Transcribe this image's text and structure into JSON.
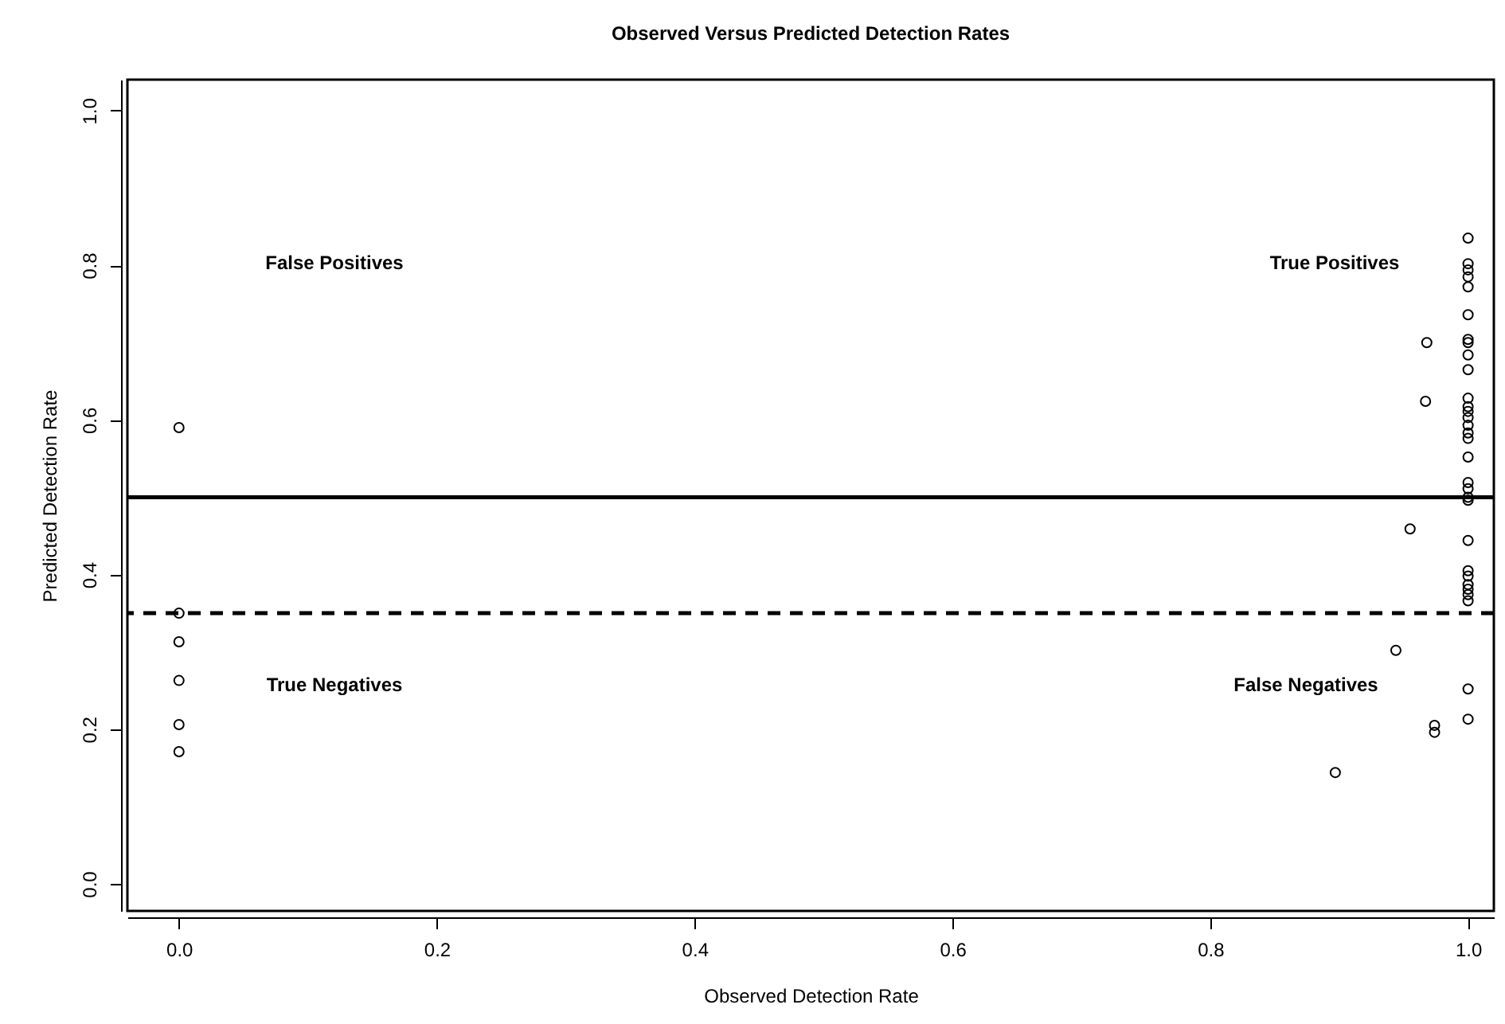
{
  "chart_data": {
    "type": "scatter",
    "title": "Observed Versus Predicted Detection Rates",
    "xlabel": "Observed Detection Rate",
    "ylabel": "Predicted Detection Rate",
    "x": [
      0,
      0,
      0,
      0,
      0,
      0,
      1,
      1,
      1,
      1,
      1,
      1,
      1,
      1,
      1,
      1,
      1,
      1,
      1,
      1,
      1,
      1,
      1,
      1,
      1,
      1,
      1,
      1,
      1,
      1,
      1,
      1,
      1,
      1,
      1,
      1,
      1,
      0.968,
      0.967,
      0.955,
      0.944,
      0.974,
      0.974,
      0.897
    ],
    "values": [
      0.59,
      0.35,
      0.313,
      0.263,
      0.206,
      0.171,
      0.835,
      0.802,
      0.794,
      0.785,
      0.772,
      0.736,
      0.704,
      0.7,
      0.684,
      0.665,
      0.628,
      0.617,
      0.611,
      0.603,
      0.593,
      0.583,
      0.576,
      0.552,
      0.519,
      0.511,
      0.5,
      0.496,
      0.444,
      0.405,
      0.398,
      0.387,
      0.381,
      0.374,
      0.366,
      0.252,
      0.213,
      0.7,
      0.624,
      0.459,
      0.302,
      0.205,
      0.196,
      0.144
    ],
    "color": "#000000",
    "marker": "circle",
    "grid": false,
    "xlim": [
      -0.04,
      1.02
    ],
    "ylim": [
      -0.035,
      1.04
    ],
    "xticks": [
      {
        "value": 0,
        "label": "0.0"
      },
      0.2,
      0.4,
      0.6,
      0.8,
      {
        "value": 1,
        "label": "1.0"
      }
    ],
    "yticks": [
      {
        "value": 0,
        "label": "0.0"
      },
      0.2,
      0.4,
      0.6,
      0.8,
      {
        "value": 1,
        "label": "1.0"
      }
    ],
    "ref_lines": [
      {
        "axis": "y",
        "value": 0.5,
        "line_style": "solid"
      },
      {
        "axis": "y",
        "value": 0.35,
        "line_style": "dashed"
      }
    ],
    "annotations": [
      "False Positives",
      "True Positives",
      "True Negatives",
      "False Negatives"
    ]
  }
}
